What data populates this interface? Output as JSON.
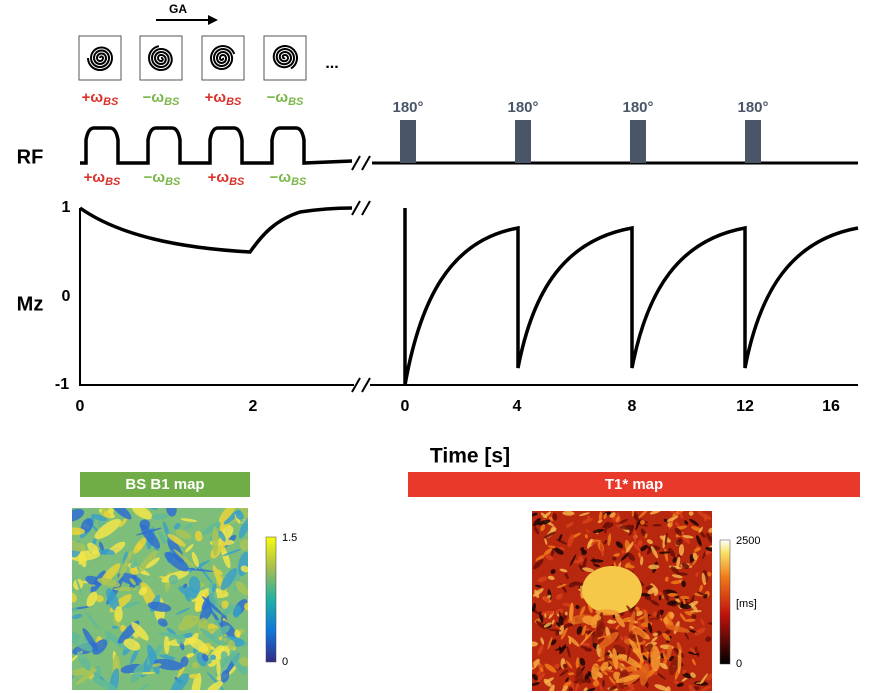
{
  "sequence": {
    "ga_label": "GA",
    "ellipsis": "...",
    "top_labels": [
      {
        "sign": "+ω",
        "sub": "BS"
      },
      {
        "sign": "−ω",
        "sub": "BS"
      },
      {
        "sign": "+ω",
        "sub": "BS"
      },
      {
        "sign": "−ω",
        "sub": "BS"
      }
    ],
    "rf_label": "RF",
    "bottom_labels": [
      {
        "sign": "+ω",
        "sub": "BS"
      },
      {
        "sign": "−ω",
        "sub": "BS"
      },
      {
        "sign": "+ω",
        "sub": "BS"
      },
      {
        "sign": "−ω",
        "sub": "BS"
      }
    ],
    "inversion_labels": [
      "180°",
      "180°",
      "180°",
      "180°"
    ]
  },
  "plot": {
    "y_label": "Mz",
    "y_ticks": [
      "1",
      "0",
      "-1"
    ],
    "x_ticks_left": [
      "0",
      "2"
    ],
    "x_ticks_right": [
      "0",
      "4",
      "8",
      "12",
      "16"
    ],
    "x_label": "Time [s]"
  },
  "maps": [
    {
      "title": "BS B1 map",
      "colorbar_max": "1.5",
      "colorbar_min": "0"
    },
    {
      "title": "T1* map",
      "colorbar_max": "2500",
      "colorbar_unit": "[ms]",
      "colorbar_min": "0"
    }
  ]
}
